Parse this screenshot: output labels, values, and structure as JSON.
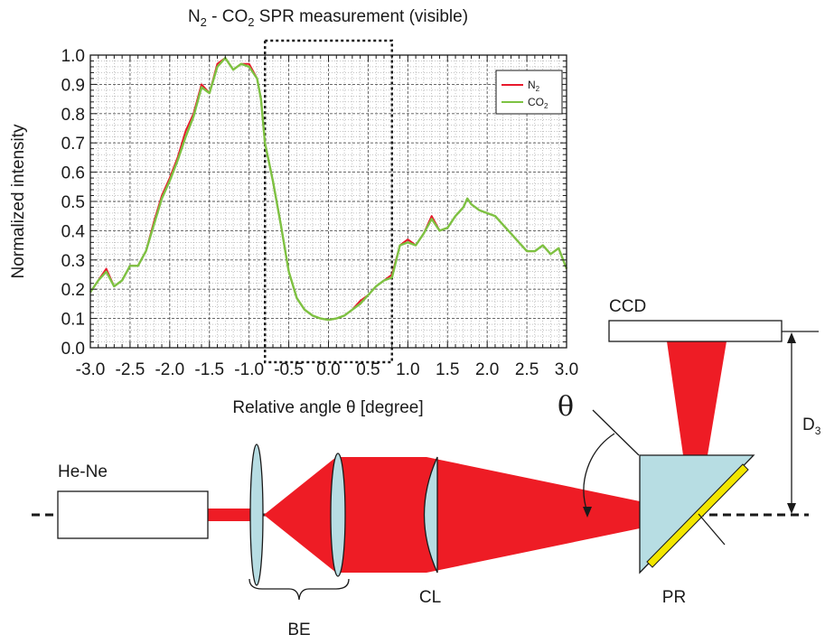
{
  "chart_data": {
    "type": "line",
    "title": "N",
    "title_sub": "2",
    "title_mid": " - CO",
    "title_sub2": "2",
    "title_tail": " SPR measurement (visible)",
    "xlabel": "Relative angle θ [degree]",
    "ylabel": "Normalized intensity",
    "xlim": [
      -3.0,
      3.0
    ],
    "ylim": [
      0.0,
      1.0
    ],
    "x_ticks": [
      "-3.0",
      "-2.5",
      "-2.0",
      "-1.5",
      "-1.0",
      "-0.5",
      "0.0",
      "0.5",
      "1.0",
      "1.5",
      "2.0",
      "2.5",
      "3.0"
    ],
    "y_ticks": [
      "0.0",
      "0.1",
      "0.2",
      "0.3",
      "0.4",
      "0.5",
      "0.6",
      "0.7",
      "0.8",
      "0.9",
      "1.0"
    ],
    "grid": true,
    "legend_position": "top-right",
    "highlight_region": [
      -0.8,
      0.8
    ],
    "series": [
      {
        "name": "N",
        "name_sub": "2",
        "color": "#e8192c",
        "x": [
          -3.0,
          -2.9,
          -2.8,
          -2.7,
          -2.6,
          -2.5,
          -2.4,
          -2.3,
          -2.2,
          -2.1,
          -2.0,
          -1.9,
          -1.8,
          -1.7,
          -1.6,
          -1.5,
          -1.4,
          -1.3,
          -1.2,
          -1.1,
          -1.0,
          -0.9,
          -0.85,
          -0.8,
          -0.7,
          -0.6,
          -0.5,
          -0.4,
          -0.3,
          -0.2,
          -0.1,
          0.0,
          0.1,
          0.2,
          0.3,
          0.4,
          0.5,
          0.6,
          0.7,
          0.8,
          0.9,
          1.0,
          1.1,
          1.2,
          1.3,
          1.4,
          1.5,
          1.6,
          1.7,
          1.75,
          1.8,
          1.9,
          2.0,
          2.1,
          2.2,
          2.3,
          2.4,
          2.5,
          2.6,
          2.7,
          2.8,
          2.9,
          3.0
        ],
        "y": [
          0.19,
          0.23,
          0.27,
          0.21,
          0.23,
          0.28,
          0.28,
          0.33,
          0.43,
          0.52,
          0.58,
          0.65,
          0.74,
          0.8,
          0.9,
          0.87,
          0.97,
          0.99,
          0.95,
          0.97,
          0.97,
          0.92,
          0.85,
          0.7,
          0.57,
          0.42,
          0.26,
          0.17,
          0.13,
          0.11,
          0.1,
          0.095,
          0.1,
          0.11,
          0.13,
          0.16,
          0.18,
          0.21,
          0.23,
          0.25,
          0.35,
          0.37,
          0.35,
          0.39,
          0.45,
          0.4,
          0.41,
          0.45,
          0.48,
          0.51,
          0.49,
          0.47,
          0.46,
          0.45,
          0.42,
          0.39,
          0.36,
          0.33,
          0.33,
          0.35,
          0.32,
          0.34,
          0.27
        ]
      },
      {
        "name": "CO",
        "name_sub": "2",
        "color": "#7dc242",
        "x": [
          -3.0,
          -2.9,
          -2.8,
          -2.7,
          -2.6,
          -2.5,
          -2.4,
          -2.3,
          -2.2,
          -2.1,
          -2.0,
          -1.9,
          -1.8,
          -1.7,
          -1.6,
          -1.5,
          -1.4,
          -1.3,
          -1.2,
          -1.1,
          -1.0,
          -0.9,
          -0.85,
          -0.8,
          -0.7,
          -0.6,
          -0.5,
          -0.4,
          -0.3,
          -0.2,
          -0.1,
          0.0,
          0.1,
          0.2,
          0.3,
          0.4,
          0.5,
          0.6,
          0.7,
          0.8,
          0.9,
          1.0,
          1.1,
          1.2,
          1.3,
          1.4,
          1.5,
          1.6,
          1.7,
          1.75,
          1.8,
          1.9,
          2.0,
          2.1,
          2.2,
          2.3,
          2.4,
          2.5,
          2.6,
          2.7,
          2.8,
          2.9,
          3.0
        ],
        "y": [
          0.19,
          0.23,
          0.26,
          0.21,
          0.23,
          0.28,
          0.28,
          0.33,
          0.42,
          0.51,
          0.57,
          0.64,
          0.72,
          0.79,
          0.89,
          0.87,
          0.96,
          0.99,
          0.95,
          0.97,
          0.96,
          0.92,
          0.85,
          0.7,
          0.57,
          0.42,
          0.26,
          0.17,
          0.13,
          0.11,
          0.1,
          0.095,
          0.1,
          0.11,
          0.13,
          0.15,
          0.18,
          0.21,
          0.23,
          0.24,
          0.35,
          0.36,
          0.35,
          0.39,
          0.44,
          0.4,
          0.41,
          0.45,
          0.48,
          0.51,
          0.49,
          0.47,
          0.46,
          0.45,
          0.42,
          0.39,
          0.36,
          0.33,
          0.33,
          0.35,
          0.32,
          0.34,
          0.27
        ]
      }
    ]
  },
  "diagram": {
    "laser_label": "He-Ne",
    "beam_expander_label": "BE",
    "lens_label": "CL",
    "prism_label": "PR",
    "ccd_label": "CCD",
    "angle_symbol": "θ",
    "distance_label": "D",
    "distance_sub": "3",
    "colors": {
      "beam": "#ee1c25",
      "optics_fill": "#b7dde3",
      "sensor_strip": "#f2e600"
    }
  }
}
